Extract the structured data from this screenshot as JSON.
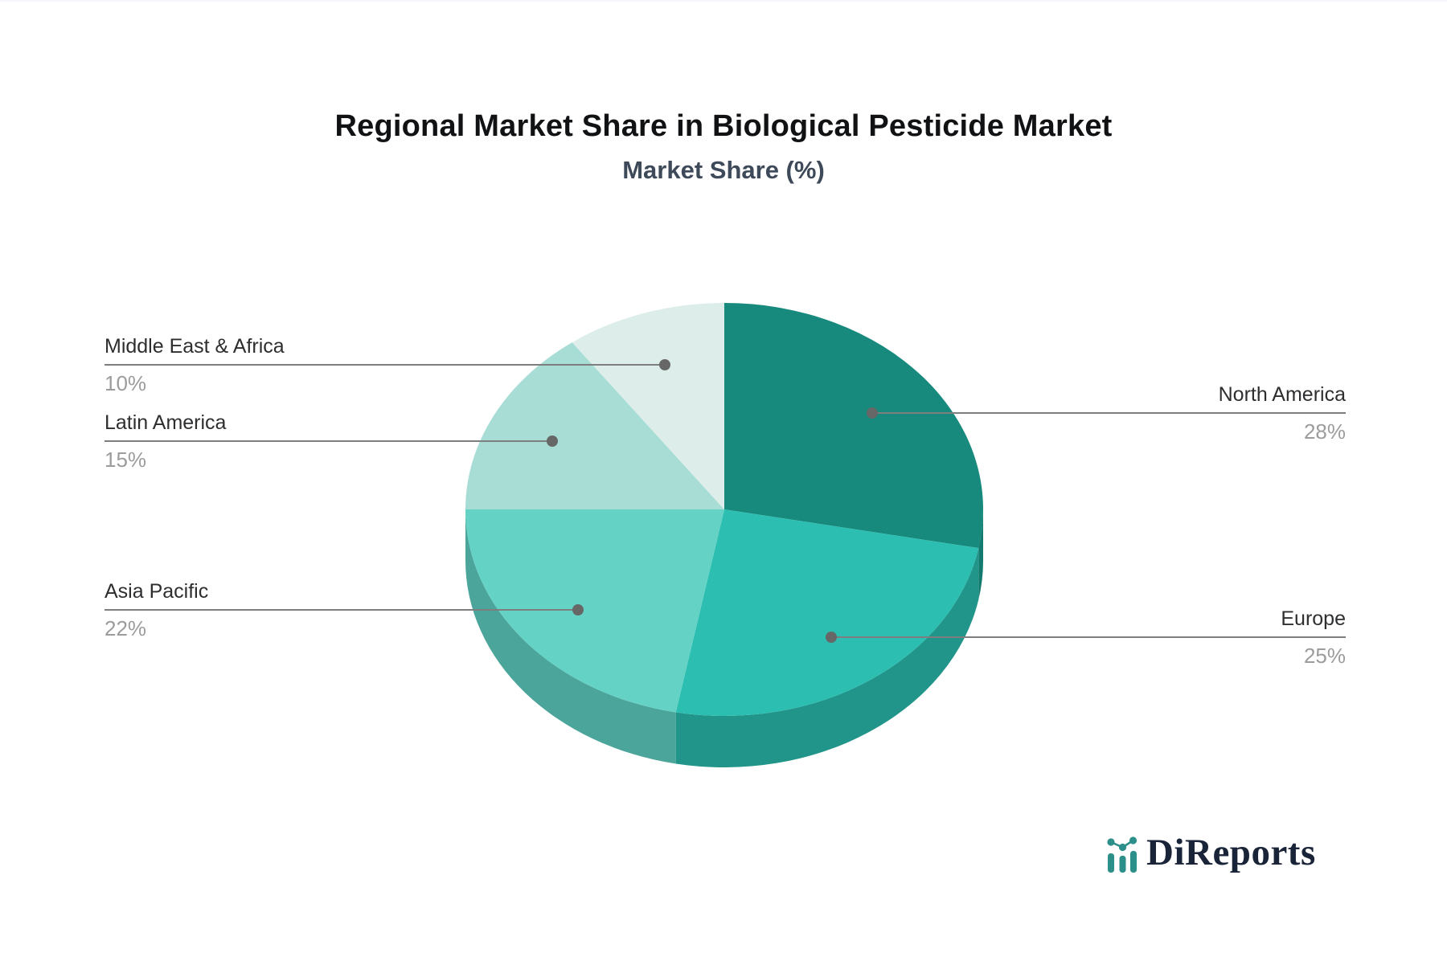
{
  "header": {
    "title": "Regional Market Share in Biological Pesticide Market",
    "subtitle": "Market Share (%)"
  },
  "chart_data": {
    "type": "pie",
    "style": "3d-pie",
    "title": "Regional Market Share in Biological Pesticide Market",
    "subtitle": "Market Share (%)",
    "unit": "%",
    "start_angle_deg": 0,
    "direction": "clockwise",
    "legend_position": "callout-labels",
    "categories": [
      "North America",
      "Europe",
      "Asia Pacific",
      "Latin America",
      "Middle East & Africa"
    ],
    "values": [
      28,
      25,
      22,
      15,
      10
    ],
    "value_labels": [
      "28%",
      "25%",
      "22%",
      "15%",
      "10%"
    ],
    "series": [
      {
        "name": "North America",
        "value": 28,
        "color": "#17897d",
        "side_color": "#127a6f"
      },
      {
        "name": "Europe",
        "value": 25,
        "color": "#2cbfb1",
        "side_color": "#219589"
      },
      {
        "name": "Asia Pacific",
        "value": 22,
        "color": "#65d2c6",
        "side_color": "#4ba59b"
      },
      {
        "name": "Latin America",
        "value": 15,
        "color": "#a8ddd6",
        "side_color": "#84aea8"
      },
      {
        "name": "Middle East & Africa",
        "value": 10,
        "color": "#ddeeea",
        "side_color": "#aebbb8"
      }
    ]
  },
  "callouts": {
    "north_america": {
      "label": "North America",
      "pct": "28%"
    },
    "europe": {
      "label": "Europe",
      "pct": "25%"
    },
    "asia_pacific": {
      "label": "Asia Pacific",
      "pct": "22%"
    },
    "latin_america": {
      "label": "Latin America",
      "pct": "15%"
    },
    "middle_east_africa": {
      "label": "Middle East & Africa",
      "pct": "10%"
    }
  },
  "logo": {
    "text": "DiReports",
    "icon": "bar-chart-trend-icon",
    "icon_color": "#2c8f89",
    "text_color": "#1a2438"
  }
}
